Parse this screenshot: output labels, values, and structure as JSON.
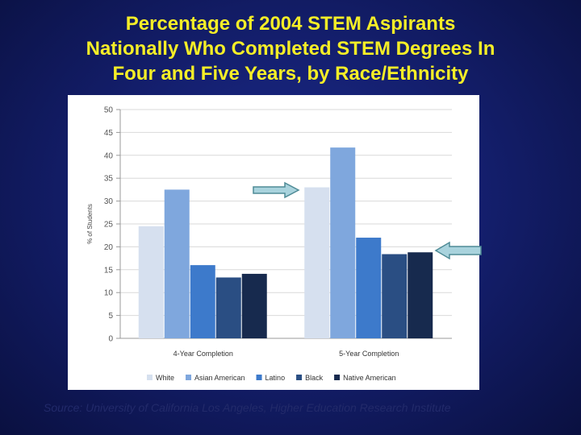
{
  "slide": {
    "title_lines": [
      "Percentage of 2004 STEM Aspirants",
      "Nationally Who Completed STEM Degrees In",
      "Four and Five Years, by Race/Ethnicity"
    ],
    "source": "Source: University of California Los Angeles, Higher Education Research Institute"
  },
  "colors": {
    "background": "#141f6e",
    "title": "#f5ee27",
    "arrow_fill": "#a9d3dd",
    "arrow_stroke": "#4f8b96"
  },
  "chart_data": {
    "type": "bar",
    "title": "",
    "xlabel": "",
    "ylabel": "% of Students",
    "ylim": [
      0,
      50
    ],
    "yticks": [
      0,
      5,
      10,
      15,
      20,
      25,
      30,
      35,
      40,
      45,
      50
    ],
    "grid": true,
    "legend_position": "bottom",
    "categories": [
      "4-Year Completion",
      "5-Year Completion"
    ],
    "series": [
      {
        "name": "White",
        "color": "#d6e0ef",
        "values": [
          24.5,
          33
        ]
      },
      {
        "name": "Asian American",
        "color": "#7fa7dd",
        "values": [
          32.5,
          41.7
        ]
      },
      {
        "name": "Latino",
        "color": "#3d7acb",
        "values": [
          16,
          22
        ]
      },
      {
        "name": "Black",
        "color": "#2a4e83",
        "values": [
          13.3,
          18.4
        ]
      },
      {
        "name": "Native American",
        "color": "#172a4e",
        "values": [
          14.1,
          18.8
        ]
      }
    ]
  }
}
